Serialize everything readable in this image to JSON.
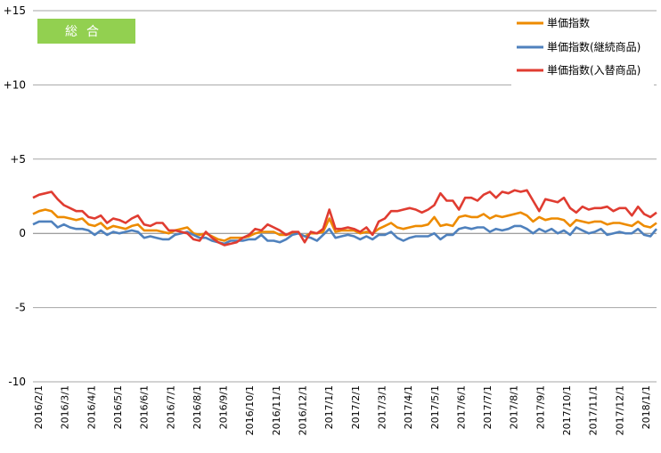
{
  "badge": {
    "text": "総合",
    "color": "#92D050"
  },
  "chart_data": {
    "type": "line",
    "title": "",
    "xlabel": "",
    "ylabel": "",
    "ylim": [
      -10,
      15
    ],
    "y_ticks": [
      {
        "value": 15,
        "label": "+15"
      },
      {
        "value": 10,
        "label": "+10"
      },
      {
        "value": 5,
        "label": "+5"
      },
      {
        "value": 0,
        "label": "0"
      },
      {
        "value": -5,
        "label": "-5"
      },
      {
        "value": -10,
        "label": "-10"
      }
    ],
    "x_tick_labels": [
      "2016/2/1",
      "2016/3/1",
      "2016/4/1",
      "2016/5/1",
      "2016/6/1",
      "2016/7/1",
      "2016/8/1",
      "2016/9/1",
      "2016/10/1",
      "2016/11/1",
      "2016/12/1",
      "2017/1/1",
      "2017/2/1",
      "2017/3/1",
      "2017/4/1",
      "2017/5/1",
      "2017/6/1",
      "2017/7/1",
      "2017/8/1",
      "2017/9/1",
      "2017/10/1",
      "2017/11/1",
      "2017/12/1",
      "2018/1/1"
    ],
    "grid": "horizontal",
    "legend_position": "top-right",
    "series": [
      {
        "name": "単価指数",
        "color": "#ED8B00",
        "values": [
          1.3,
          1.5,
          1.6,
          1.5,
          1.1,
          1.1,
          1.0,
          0.9,
          1.0,
          0.6,
          0.5,
          0.7,
          0.3,
          0.5,
          0.4,
          0.3,
          0.5,
          0.6,
          0.2,
          0.2,
          0.2,
          0.1,
          0.0,
          0.2,
          0.3,
          0.4,
          0.0,
          -0.1,
          0.0,
          -0.2,
          -0.4,
          -0.5,
          -0.3,
          -0.3,
          -0.3,
          -0.2,
          0.0,
          0.1,
          0.1,
          0.1,
          -0.1,
          -0.1,
          0.0,
          0.0,
          -0.2,
          0.0,
          0.0,
          0.1,
          1.0,
          0.1,
          0.2,
          0.2,
          0.2,
          0.0,
          0.1,
          0.0,
          0.3,
          0.5,
          0.7,
          0.4,
          0.3,
          0.4,
          0.5,
          0.5,
          0.6,
          1.1,
          0.5,
          0.6,
          0.5,
          1.1,
          1.2,
          1.1,
          1.1,
          1.3,
          1.0,
          1.2,
          1.1,
          1.2,
          1.3,
          1.4,
          1.2,
          0.8,
          1.1,
          0.9,
          1.0,
          1.0,
          0.9,
          0.5,
          0.9,
          0.8,
          0.7,
          0.8,
          0.8,
          0.6,
          0.7,
          0.7,
          0.6,
          0.5,
          0.8,
          0.5,
          0.4,
          0.7
        ]
      },
      {
        "name": "単価指数(継続商品)",
        "color": "#4F81BD",
        "values": [
          0.6,
          0.8,
          0.8,
          0.8,
          0.4,
          0.6,
          0.4,
          0.3,
          0.3,
          0.2,
          -0.1,
          0.2,
          -0.1,
          0.1,
          0.0,
          0.1,
          0.2,
          0.1,
          -0.3,
          -0.2,
          -0.3,
          -0.4,
          -0.4,
          -0.1,
          0.0,
          0.1,
          -0.1,
          -0.3,
          -0.3,
          -0.5,
          -0.6,
          -0.7,
          -0.5,
          -0.5,
          -0.5,
          -0.4,
          -0.4,
          -0.1,
          -0.5,
          -0.5,
          -0.6,
          -0.4,
          -0.1,
          0.0,
          -0.2,
          -0.3,
          -0.5,
          -0.1,
          0.3,
          -0.3,
          -0.2,
          -0.1,
          -0.2,
          -0.4,
          -0.2,
          -0.4,
          -0.1,
          -0.1,
          0.1,
          -0.3,
          -0.5,
          -0.3,
          -0.2,
          -0.2,
          -0.2,
          0.0,
          -0.4,
          -0.1,
          -0.1,
          0.3,
          0.4,
          0.3,
          0.4,
          0.4,
          0.1,
          0.3,
          0.2,
          0.3,
          0.5,
          0.5,
          0.3,
          0.0,
          0.3,
          0.1,
          0.3,
          0.0,
          0.2,
          -0.1,
          0.4,
          0.2,
          0.0,
          0.1,
          0.3,
          -0.1,
          0.0,
          0.1,
          0.0,
          0.0,
          0.3,
          -0.1,
          -0.2,
          0.3
        ]
      },
      {
        "name": "単価指数(入替商品)",
        "color": "#E03C31",
        "values": [
          2.4,
          2.6,
          2.7,
          2.8,
          2.3,
          1.9,
          1.7,
          1.5,
          1.5,
          1.1,
          1.0,
          1.2,
          0.7,
          1.0,
          0.9,
          0.7,
          1.0,
          1.2,
          0.6,
          0.5,
          0.7,
          0.7,
          0.2,
          0.2,
          0.1,
          0.0,
          -0.4,
          -0.5,
          0.1,
          -0.3,
          -0.6,
          -0.8,
          -0.7,
          -0.6,
          -0.3,
          -0.1,
          0.3,
          0.2,
          0.6,
          0.4,
          0.2,
          -0.1,
          0.1,
          0.1,
          -0.6,
          0.1,
          0.0,
          0.3,
          1.6,
          0.3,
          0.3,
          0.4,
          0.3,
          0.1,
          0.4,
          -0.1,
          0.8,
          1.0,
          1.5,
          1.5,
          1.6,
          1.7,
          1.6,
          1.4,
          1.6,
          1.9,
          2.7,
          2.2,
          2.2,
          1.6,
          2.4,
          2.4,
          2.2,
          2.6,
          2.8,
          2.4,
          2.8,
          2.7,
          2.9,
          2.8,
          2.9,
          2.2,
          1.5,
          2.3,
          2.2,
          2.1,
          2.4,
          1.7,
          1.4,
          1.8,
          1.6,
          1.7,
          1.7,
          1.8,
          1.5,
          1.7,
          1.7,
          1.2,
          1.8,
          1.3,
          1.1,
          1.4
        ]
      }
    ]
  }
}
